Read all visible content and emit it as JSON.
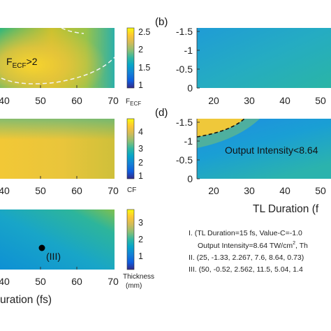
{
  "chart_data": [
    {
      "type": "heatmap",
      "x_ticks": [
        "40",
        "50",
        "60",
        "70"
      ],
      "colorbar": {
        "ticks": [
          "2.5",
          "2",
          "1.5",
          "1"
        ],
        "label_main": "F",
        "label_sub": "ECF",
        "range": [
          1,
          2.6
        ]
      },
      "annotation": {
        "main": "F",
        "sub": "ECF",
        "tail": ">2"
      },
      "colormap": "parula"
    },
    {
      "type": "heatmap",
      "x_ticks": [
        "40",
        "50",
        "60",
        "70"
      ],
      "colorbar": {
        "ticks": [
          "4",
          "3",
          "2",
          "1"
        ],
        "label": "CF",
        "range": [
          0.6,
          4.9
        ]
      },
      "colormap": "parula"
    },
    {
      "type": "heatmap",
      "x_ticks": [
        "40",
        "50",
        "60",
        "70"
      ],
      "xlabel": "uration (fs)",
      "colorbar": {
        "ticks": [
          "3",
          "2",
          "1"
        ],
        "label_line1": "Thickness",
        "label_line2": "(mm)",
        "range": [
          0.2,
          3.8
        ]
      },
      "marker": {
        "x": 50,
        "label": "(III)"
      },
      "colormap": "parula"
    },
    {
      "type": "heatmap",
      "panel_label": "(b)",
      "x_ticks": [
        "20",
        "30",
        "40",
        "50"
      ],
      "y_ticks": [
        "-1.5",
        "-1",
        "-0.5",
        "0"
      ],
      "colormap": "parula"
    },
    {
      "type": "heatmap",
      "panel_label": "(d)",
      "x_ticks": [
        "20",
        "30",
        "40",
        "50"
      ],
      "y_ticks": [
        "-1.5",
        "-1",
        "-0.5",
        "0"
      ],
      "xlabel": "TL Duration (f",
      "annotation": "Output Intensity<8.64",
      "colormap": "parula"
    }
  ],
  "notes": {
    "line1": "I. (TL Duration=15 fs, Value-C=-1.0",
    "line2_pre": "Output Intensity=8.64 TW/cm",
    "line2_sup": "2",
    "line2_post": ", Th",
    "line3": "II. (25, -1.33, 2.267, 7.6, 8.64, 0.73)",
    "line4": "III. (50, -0.52, 2.562, 11.5, 5.04, 1.4"
  }
}
